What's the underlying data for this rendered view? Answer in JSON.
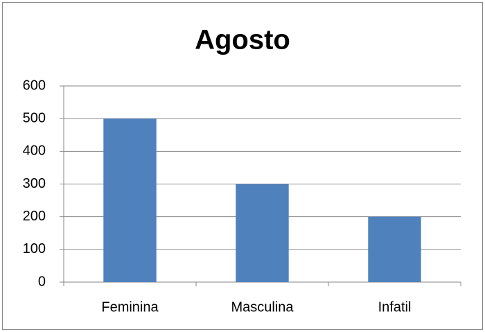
{
  "chart_data": {
    "type": "bar",
    "title": "Agosto",
    "categories": [
      "Feminina",
      "Masculina",
      "Infatil"
    ],
    "values": [
      500,
      300,
      200
    ],
    "color": "#4f81bd",
    "ylim": [
      0,
      600
    ],
    "yticks": [
      0,
      100,
      200,
      300,
      400,
      500,
      600
    ],
    "grid": true
  }
}
